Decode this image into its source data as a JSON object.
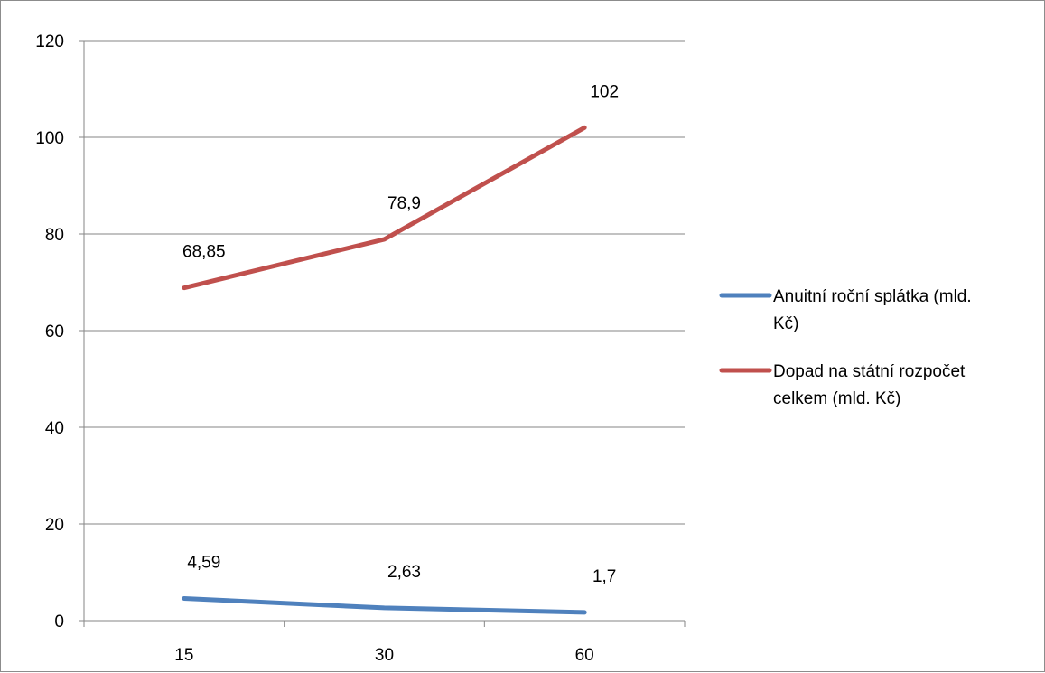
{
  "chart_data": {
    "type": "line",
    "title": "",
    "xlabel": "",
    "ylabel": "",
    "categories": [
      "15",
      "30",
      "60"
    ],
    "ylim": [
      0,
      120
    ],
    "yticks": [
      0,
      20,
      40,
      60,
      80,
      100,
      120
    ],
    "grid": true,
    "legend_position": "right",
    "series": [
      {
        "name": "Anuitní roční splátka (mld. Kč)",
        "name_lines": [
          "Anuitní roční splátka (mld.",
          "Kč)"
        ],
        "values": [
          4.59,
          2.63,
          1.7
        ],
        "labels": [
          "4,59",
          "2,63",
          "1,7"
        ],
        "color": "#4f81bd"
      },
      {
        "name": "Dopad na státní rozpočet celkem (mld. Kč)",
        "name_lines": [
          "Dopad na státní rozpočet",
          "celkem (mld. Kč)"
        ],
        "values": [
          68.85,
          78.9,
          102
        ],
        "labels": [
          "68,85",
          "78,9",
          "102"
        ],
        "color": "#c0504d"
      }
    ]
  }
}
